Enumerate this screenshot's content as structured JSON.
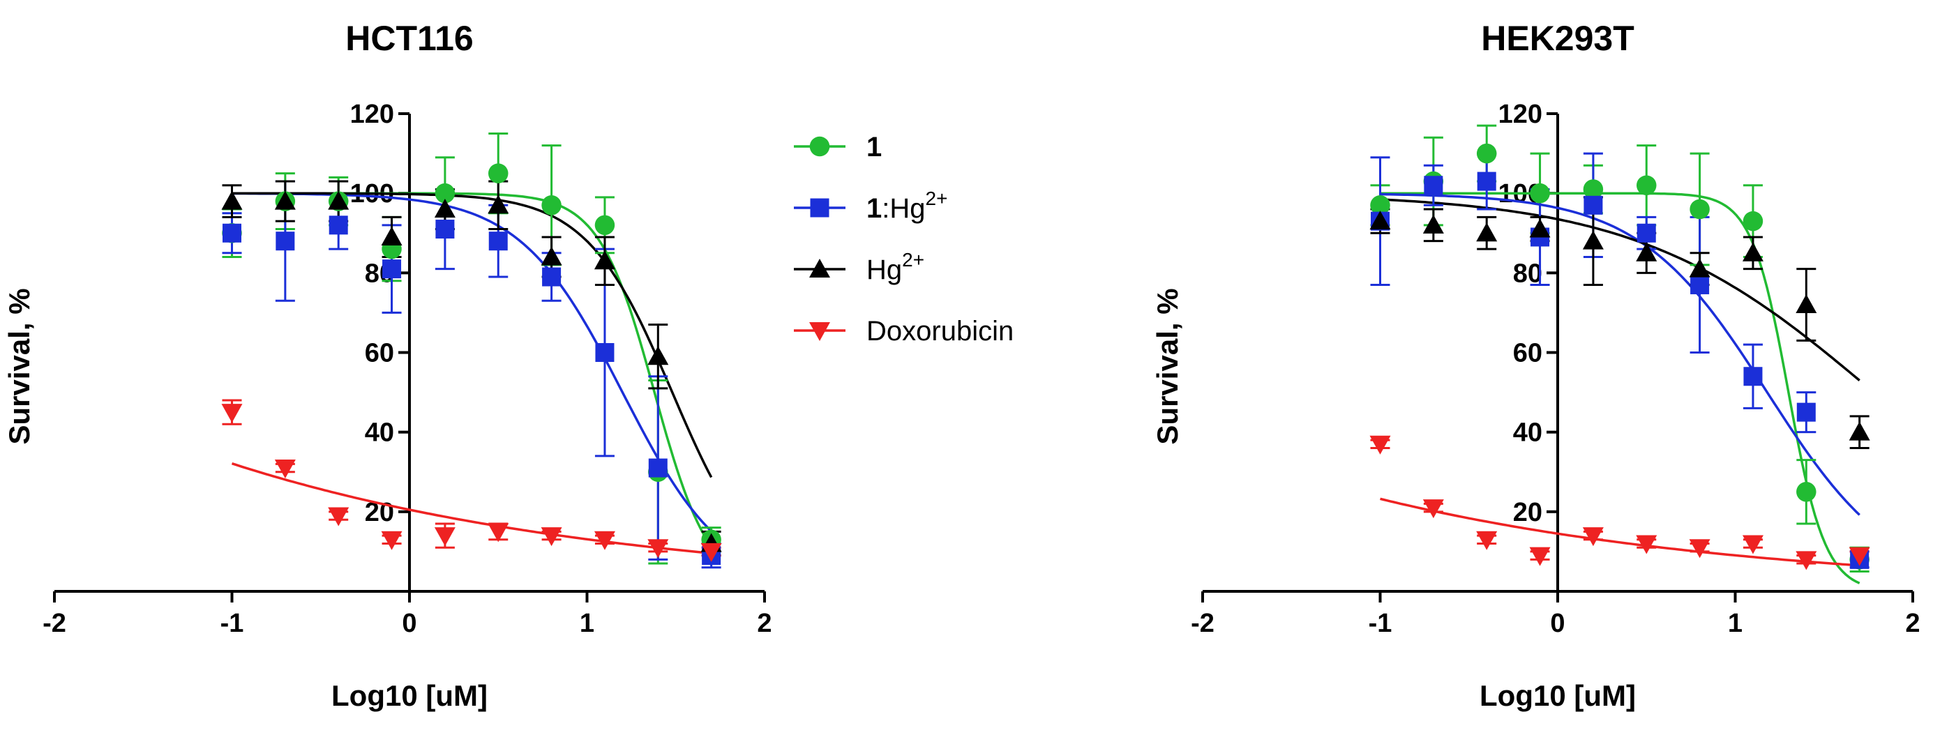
{
  "chart_data": [
    {
      "type": "scatter",
      "title": "HCT116",
      "xlabel": "Log10 [uM]",
      "ylabel": "Survival, %",
      "xlim": [
        -2,
        2
      ],
      "ylim": [
        0,
        120
      ],
      "xticks": [
        "-2",
        "-1",
        "0",
        "1",
        "2"
      ],
      "yticks": [
        "20",
        "40",
        "60",
        "80",
        "100",
        "120"
      ],
      "x": [
        -1.0,
        -0.7,
        -0.4,
        -0.1,
        0.2,
        0.5,
        0.8,
        1.1,
        1.4,
        1.7
      ],
      "series": [
        {
          "name": "1",
          "color": "#22bb33",
          "marker": "circle",
          "values": [
            90,
            98,
            98,
            86,
            100,
            105,
            97,
            92,
            30,
            13
          ],
          "errors": [
            6,
            7,
            6,
            8,
            9,
            10,
            15,
            7,
            23,
            3
          ],
          "fit": {
            "bottom": 0,
            "top": 100,
            "logIC50": 1.38,
            "hill": 2.8
          }
        },
        {
          "name": "1:Hg2+",
          "color": "#1b2fd8",
          "marker": "square",
          "values": [
            90,
            88,
            92,
            81,
            91,
            88,
            79,
            60,
            31,
            9
          ],
          "errors": [
            5,
            15,
            6,
            11,
            10,
            9,
            6,
            26,
            23,
            3
          ],
          "fit": {
            "bottom": 0,
            "top": 100,
            "logIC50": 1.2,
            "hill": 1.5
          }
        },
        {
          "name": "Hg2+",
          "color": "#000000",
          "marker": "triangle-up",
          "values": [
            98,
            98,
            98,
            89,
            96,
            97,
            84,
            83,
            59,
            12
          ],
          "errors": [
            4,
            5,
            5,
            5,
            5,
            6,
            5,
            6,
            8,
            3
          ],
          "fit": {
            "bottom": 0,
            "top": 100,
            "logIC50": 1.48,
            "hill": 1.8
          }
        },
        {
          "name": "Doxorubicin",
          "color": "#ee2222",
          "marker": "triangle-down",
          "values": [
            45,
            31,
            19,
            13,
            14,
            15,
            14,
            13,
            11,
            10
          ],
          "errors": [
            3,
            1,
            1,
            1,
            3,
            2,
            1,
            1,
            1,
            1
          ],
          "fit": {
            "a": 20.5,
            "b": -0.195
          }
        }
      ]
    },
    {
      "type": "scatter",
      "title": "HEK293T",
      "xlabel": "Log10 [uM]",
      "ylabel": "Survival, %",
      "xlim": [
        -2,
        2
      ],
      "ylim": [
        0,
        120
      ],
      "xticks": [
        "-2",
        "-1",
        "0",
        "1",
        "2"
      ],
      "yticks": [
        "20",
        "40",
        "60",
        "80",
        "100",
        "120"
      ],
      "x": [
        -1.0,
        -0.7,
        -0.4,
        -0.1,
        0.2,
        0.5,
        0.8,
        1.1,
        1.4,
        1.7
      ],
      "series": [
        {
          "name": "1",
          "color": "#22bb33",
          "marker": "circle",
          "values": [
            97,
            103,
            110,
            100,
            101,
            102,
            96,
            93,
            25,
            8
          ],
          "errors": [
            5,
            11,
            7,
            10,
            6,
            10,
            14,
            9,
            8,
            3
          ],
          "fit": {
            "bottom": 0,
            "top": 100,
            "logIC50": 1.3,
            "hill": 4.2
          }
        },
        {
          "name": "1:Hg2+",
          "color": "#1b2fd8",
          "marker": "square",
          "values": [
            93,
            102,
            103,
            89,
            97,
            90,
            77,
            54,
            45,
            8
          ],
          "errors": [
            16,
            5,
            7,
            12,
            13,
            4,
            17,
            8,
            5,
            2
          ],
          "fit": {
            "bottom": 0,
            "top": 100,
            "logIC50": 1.18,
            "hill": 1.2
          }
        },
        {
          "name": "Hg2+",
          "color": "#000000",
          "marker": "triangle-up",
          "values": [
            93,
            92,
            90,
            91,
            88,
            85,
            81,
            85,
            72,
            40
          ],
          "errors": [
            3,
            4,
            4,
            3,
            11,
            5,
            4,
            4,
            9,
            4
          ],
          "fit": {
            "bottom": 0,
            "top": 100,
            "logIC50": 1.78,
            "hill": 0.65
          }
        },
        {
          "name": "Doxorubicin",
          "color": "#ee2222",
          "marker": "triangle-down",
          "values": [
            37,
            21,
            13,
            9,
            14,
            12,
            11,
            12,
            8,
            9
          ],
          "errors": [
            1,
            1,
            1,
            1,
            1,
            1,
            1,
            1,
            1,
            1
          ],
          "fit": {
            "a": 14.5,
            "b": -0.205
          }
        }
      ]
    }
  ],
  "legend": {
    "items": [
      {
        "main": "1",
        "bold": "",
        "suffix": "",
        "sup": "",
        "color": "#22bb33",
        "marker": "circle",
        "main_bold": true
      },
      {
        "main": "",
        "bold": "1",
        "suffix": ":Hg",
        "sup": "2+",
        "color": "#1b2fd8",
        "marker": "square",
        "main_bold": false
      },
      {
        "main": "",
        "bold": "",
        "suffix": "Hg",
        "sup": "2+",
        "color": "#000000",
        "marker": "triangle-up",
        "main_bold": false
      },
      {
        "main": "Doxorubicin",
        "bold": "",
        "suffix": "",
        "sup": "",
        "color": "#ee2222",
        "marker": "triangle-down",
        "main_bold": false
      }
    ]
  }
}
